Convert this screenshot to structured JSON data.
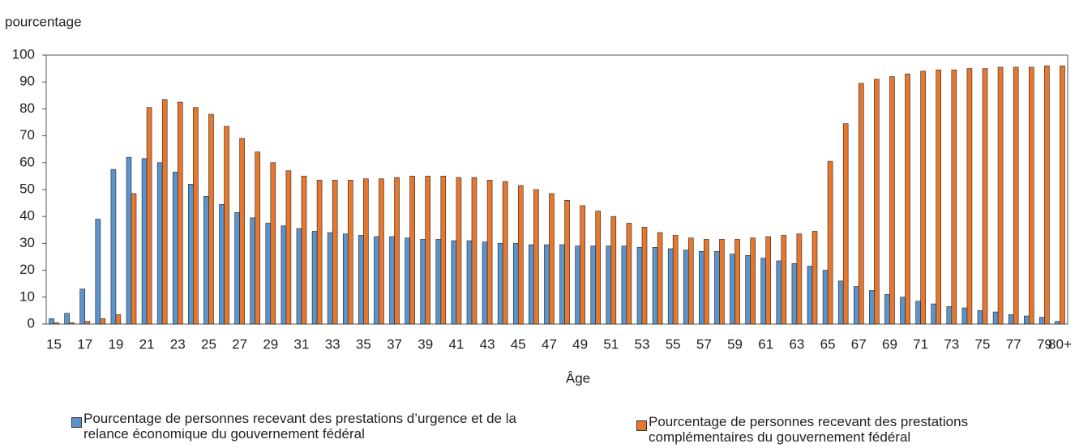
{
  "chart_data": {
    "type": "bar",
    "ylabel": "pourcentage",
    "xlabel": "Âge",
    "categories": [
      "15",
      null,
      "17",
      null,
      "19",
      null,
      "21",
      null,
      "23",
      null,
      "25",
      null,
      "27",
      null,
      "29",
      null,
      "31",
      null,
      "33",
      null,
      "35",
      null,
      "37",
      null,
      "39",
      null,
      "41",
      null,
      "43",
      null,
      "45",
      null,
      "47",
      null,
      "49",
      null,
      "51",
      null,
      "53",
      null,
      "55",
      null,
      "57",
      null,
      "59",
      null,
      "61",
      null,
      "63",
      null,
      "65",
      null,
      "67",
      null,
      "69",
      null,
      "71",
      null,
      "73",
      null,
      "75",
      null,
      "77",
      null,
      "79",
      "80+"
    ],
    "series": [
      {
        "name": "Pourcentage de personnes recevant des prestations d’urgence et de la relance économique du gouvernement fédéral",
        "color": "#5b93cc",
        "values": [
          2,
          4,
          13,
          39,
          57.5,
          62,
          61.5,
          60,
          56.5,
          52,
          47.5,
          44.5,
          41.5,
          39.5,
          37.5,
          36.5,
          35.5,
          34.5,
          34,
          33.5,
          33,
          32.5,
          32.5,
          32,
          31.5,
          31.5,
          31,
          31,
          30.5,
          30,
          30,
          29.5,
          29.5,
          29.5,
          29,
          29,
          29,
          29,
          28.5,
          28.5,
          28,
          27.5,
          27,
          27,
          26,
          25.5,
          24.5,
          23.5,
          22.5,
          21.5,
          20,
          16,
          14,
          12.5,
          11,
          10,
          8.5,
          7.5,
          6.5,
          6,
          5,
          4.5,
          3.5,
          3,
          2.5,
          1
        ]
      },
      {
        "name": "Pourcentage de personnes recevant des prestations complémentaires du gouvernement fédéral",
        "color": "#e8772e",
        "values": [
          0.5,
          0.5,
          1,
          2,
          3.5,
          48.5,
          80.5,
          83.5,
          82.5,
          80.5,
          78,
          73.5,
          69,
          64,
          60,
          57,
          55,
          53.5,
          53.5,
          53.5,
          54,
          54,
          54.5,
          55,
          55,
          55,
          54.5,
          54.5,
          53.5,
          53,
          51.5,
          50,
          48.5,
          46,
          44,
          42,
          40,
          37.5,
          36,
          34,
          33,
          32,
          31.5,
          31.5,
          31.5,
          32,
          32.5,
          33,
          33.5,
          34.5,
          60.5,
          74.5,
          89.5,
          91,
          92,
          93,
          94,
          94.5,
          94.5,
          95,
          95,
          95.5,
          95.5,
          95.5,
          96,
          96
        ]
      }
    ],
    "ylim": [
      0,
      100
    ],
    "yticks": [
      0,
      10,
      20,
      30,
      40,
      50,
      60,
      70,
      80,
      90,
      100
    ],
    "grid": false
  }
}
